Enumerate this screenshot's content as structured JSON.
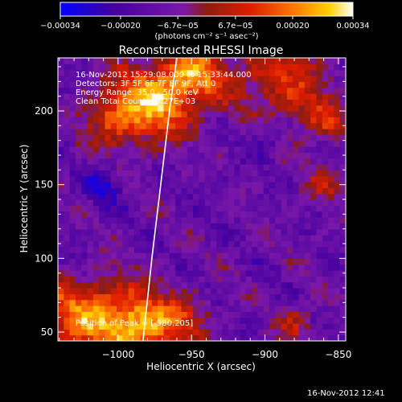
{
  "chart_data": {
    "type": "heatmap",
    "title": "Reconstructed RHESSI Image",
    "xlabel": "Heliocentric X (arcsec)",
    "ylabel": "Heliocentric Y (arcsec)",
    "xlim": [
      -1041,
      -845
    ],
    "ylim": [
      44,
      236
    ],
    "x_ticks": [
      -1000,
      -950,
      -900,
      -850
    ],
    "x_tick_labels": [
      "−1000",
      "−950",
      "−900",
      "−850"
    ],
    "y_ticks": [
      50,
      100,
      150,
      200
    ],
    "y_tick_labels": [
      "50",
      "100",
      "150",
      "200"
    ],
    "colorbar": {
      "range": [
        -0.00034,
        0.00034
      ],
      "ticks": [
        -0.00034,
        -0.0002,
        -6.7e-05,
        6.7e-05,
        0.0002,
        0.00034
      ],
      "tick_labels": [
        "−0.00034",
        "−0.00020",
        "−6.7e−05",
        "6.7e−05",
        "0.00020",
        "0.00034"
      ],
      "units_label": "(photons cm⁻² s⁻¹ asec⁻²)",
      "colors": [
        "#0000ff",
        "#4400a0",
        "#7a18a8",
        "#8c1c10",
        "#e01c00",
        "#ff7a00",
        "#ffd200",
        "#ffffff"
      ]
    },
    "header_lines": [
      "16-Nov-2012 15:29:08.000 to 15:33:44.000",
      "Detectors: 3F 5F 6F 7F 8F 9F, Att 0",
      "Energy Range: 35.0 - 50.0 keV",
      "Clean    Total Counts: 9.27E+03"
    ],
    "peak_label": "Position of Peak = [-980,205]",
    "peak_position": [
      -980,
      205
    ],
    "limb_curve": [
      [
        -960,
        236
      ],
      [
        -965,
        200
      ],
      [
        -971,
        150
      ],
      [
        -977,
        100
      ],
      [
        -983,
        44
      ]
    ]
  },
  "footer": {
    "timestamp": "16-Nov-2012 12:41"
  }
}
